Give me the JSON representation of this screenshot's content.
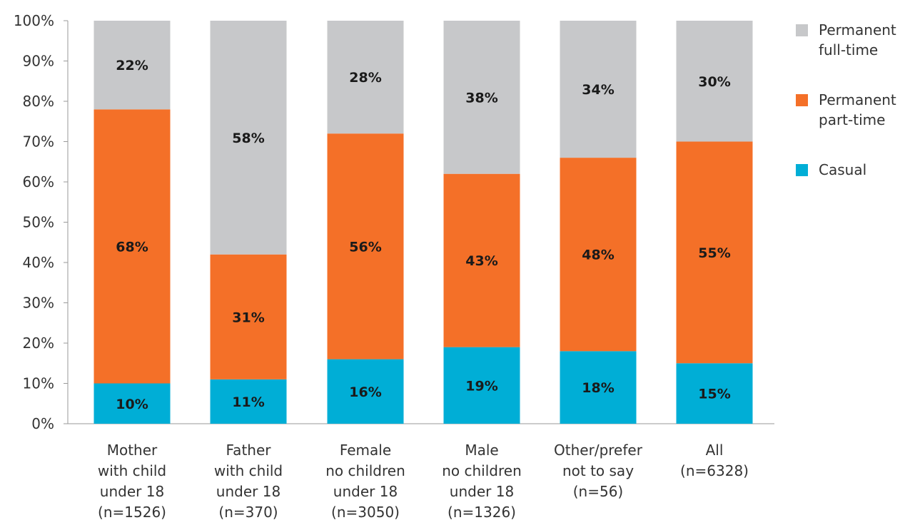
{
  "chart_data": {
    "type": "bar",
    "stacked": true,
    "categories": [
      [
        "Mother",
        "with child",
        "under 18",
        "(n=1526)"
      ],
      [
        "Father",
        "with child",
        "under 18",
        "(n=370)"
      ],
      [
        "Female",
        "no children",
        "under 18",
        "(n=3050)"
      ],
      [
        "Male",
        "no children",
        "under 18",
        "(n=1326)"
      ],
      [
        "Other/prefer",
        "not to say",
        "(n=56)"
      ],
      [
        "All",
        "(n=6328)"
      ]
    ],
    "series": [
      {
        "name": "Casual",
        "color": "#00aed6",
        "values": [
          10,
          11,
          16,
          19,
          18,
          15
        ],
        "labels": [
          "10%",
          "11%",
          "16%",
          "19%",
          "18%",
          "15%"
        ]
      },
      {
        "name": "Permanent part-time",
        "color": "#f47028",
        "values": [
          68,
          31,
          56,
          43,
          48,
          55
        ],
        "labels": [
          "68%",
          "31%",
          "56%",
          "43%",
          "48%",
          "55%"
        ]
      },
      {
        "name": "Permanent full-time",
        "color": "#c7c8ca",
        "values": [
          22,
          58,
          28,
          38,
          34,
          30
        ],
        "labels": [
          "22%",
          "58%",
          "28%",
          "38%",
          "34%",
          "30%"
        ]
      }
    ],
    "y_ticks": [
      "0%",
      "10%",
      "20%",
      "30%",
      "40%",
      "50%",
      "60%",
      "70%",
      "80%",
      "90%",
      "100%"
    ],
    "ylim": [
      0,
      100
    ],
    "grid": false,
    "legend": {
      "position": "right",
      "items": [
        {
          "lines": [
            "Permanent",
            "full-time"
          ],
          "color": "#c7c8ca"
        },
        {
          "lines": [
            "Permanent",
            "part-time"
          ],
          "color": "#f47028"
        },
        {
          "lines": [
            "Casual"
          ],
          "color": "#00aed6"
        }
      ]
    }
  }
}
